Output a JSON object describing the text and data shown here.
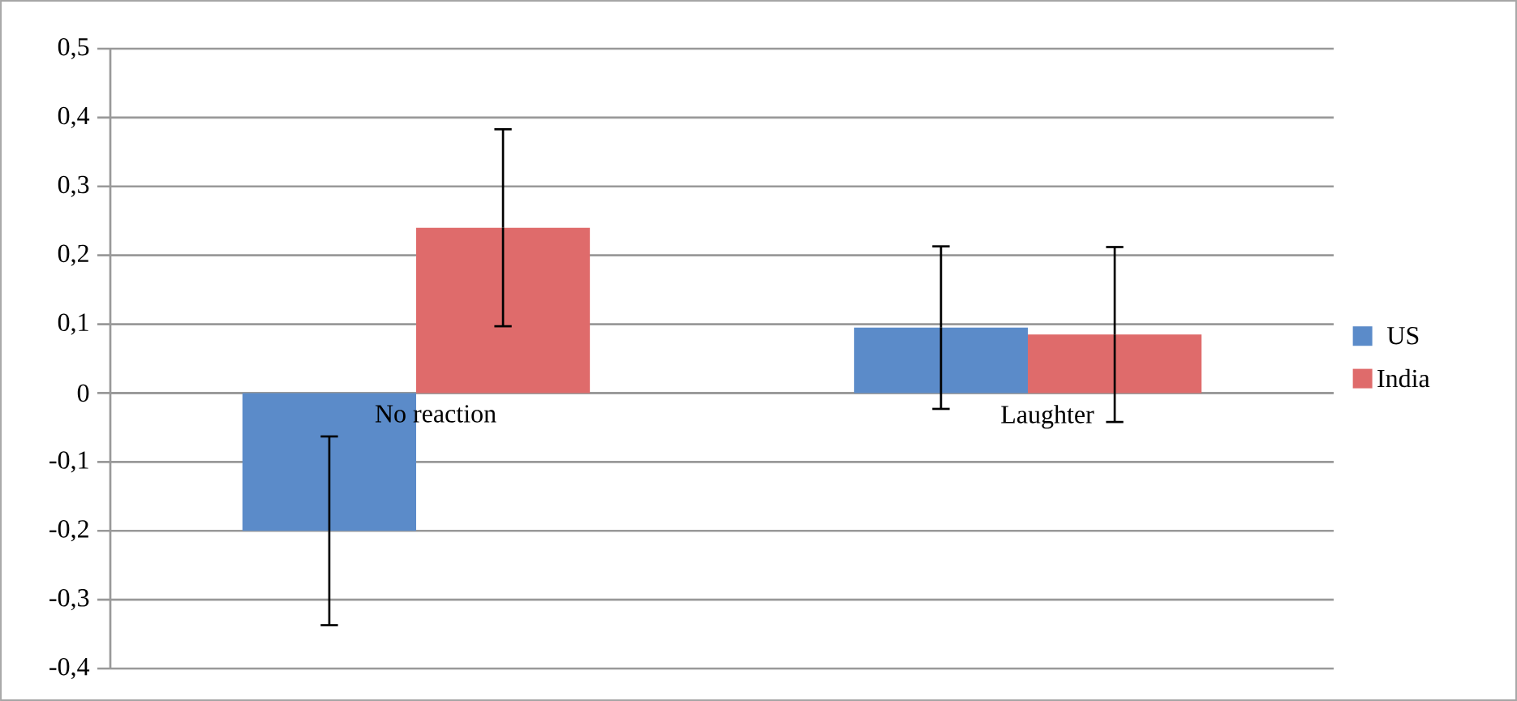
{
  "chart_data": {
    "type": "bar",
    "categories": [
      "No reaction",
      "Laughter"
    ],
    "series": [
      {
        "name": "US",
        "color": "#5b8bc9",
        "values": [
          -0.2,
          0.095
        ],
        "errors": [
          0.137,
          0.118
        ]
      },
      {
        "name": "India",
        "color": "#df6b6b",
        "values": [
          0.24,
          0.085
        ],
        "errors": [
          0.143,
          0.127
        ]
      }
    ],
    "ylim": [
      -0.4,
      0.5
    ],
    "yticks": [
      {
        "value": -0.4,
        "label": "-0,4"
      },
      {
        "value": -0.3,
        "label": "-0,3"
      },
      {
        "value": -0.2,
        "label": "-0,2"
      },
      {
        "value": -0.1,
        "label": "-0,1"
      },
      {
        "value": 0,
        "label": "0"
      },
      {
        "value": 0.1,
        "label": "0,1"
      },
      {
        "value": 0.2,
        "label": "0,2"
      },
      {
        "value": 0.3,
        "label": "0,3"
      },
      {
        "value": 0.4,
        "label": "0,4"
      },
      {
        "value": 0.5,
        "label": "0,5"
      }
    ],
    "grid": "y",
    "legend": "right"
  }
}
